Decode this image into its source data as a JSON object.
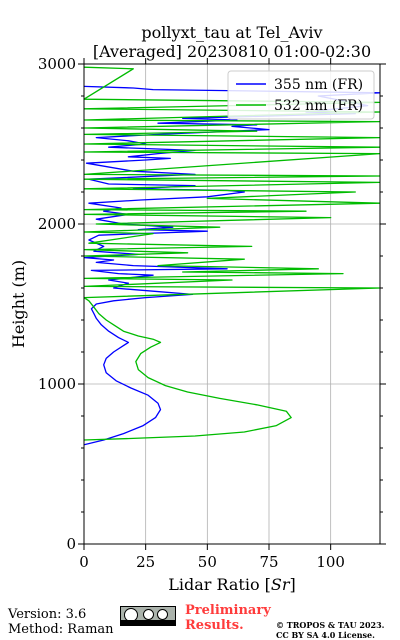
{
  "chart_data": {
    "type": "line",
    "title": "pollyxt_tau at Tel_Aviv",
    "subtitle": "[Averaged] 20230810 01:00-02:30",
    "xlabel": "Lidar Ratio [Sr]",
    "ylabel": "Height (m)",
    "xlim": [
      0,
      120
    ],
    "ylim": [
      0,
      3000
    ],
    "xticks": [
      0,
      25,
      50,
      75,
      100
    ],
    "yticks": [
      0,
      1000,
      2000,
      3000
    ],
    "grid": true,
    "legend_position": "top-right",
    "series": [
      {
        "name": "355 nm (FR)",
        "color": "#0000ff",
        "points": [
          [
            0,
            620
          ],
          [
            8,
            650
          ],
          [
            16,
            690
          ],
          [
            24,
            740
          ],
          [
            29,
            790
          ],
          [
            31,
            840
          ],
          [
            30,
            880
          ],
          [
            26,
            930
          ],
          [
            19,
            975
          ],
          [
            13,
            1020
          ],
          [
            9,
            1070
          ],
          [
            8,
            1120
          ],
          [
            9,
            1160
          ],
          [
            12,
            1200
          ],
          [
            16,
            1240
          ],
          [
            18,
            1260
          ],
          [
            14,
            1290
          ],
          [
            10,
            1330
          ],
          [
            7,
            1370
          ],
          [
            5,
            1410
          ],
          [
            4,
            1440
          ],
          [
            3,
            1470
          ],
          [
            5,
            1500
          ],
          [
            12,
            1520
          ],
          [
            25,
            1540
          ],
          [
            44,
            1560
          ],
          [
            28,
            1580
          ],
          [
            12,
            1600
          ],
          [
            18,
            1630
          ],
          [
            10,
            1650
          ],
          [
            28,
            1680
          ],
          [
            14,
            1690
          ],
          [
            3,
            1710
          ],
          [
            58,
            1720
          ],
          [
            20,
            1740
          ],
          [
            5,
            1760
          ],
          [
            12,
            1775
          ],
          [
            0,
            1790
          ],
          [
            22,
            1810
          ],
          [
            4,
            1830
          ],
          [
            8,
            1860
          ],
          [
            2,
            1900
          ],
          [
            6,
            1930
          ],
          [
            50,
            1955
          ],
          [
            22,
            1965
          ],
          [
            36,
            1980
          ],
          [
            16,
            2000
          ],
          [
            5,
            2030
          ],
          [
            18,
            2060
          ],
          [
            8,
            2080
          ],
          [
            15,
            2100
          ],
          [
            2,
            2130
          ],
          [
            23,
            2150
          ],
          [
            50,
            2170
          ],
          [
            65,
            2200
          ],
          [
            58,
            2210
          ],
          [
            20,
            2220
          ],
          [
            45,
            2240
          ],
          [
            10,
            2250
          ],
          [
            2,
            2280
          ],
          [
            30,
            2300
          ],
          [
            45,
            2310
          ],
          [
            20,
            2330
          ],
          [
            1,
            2380
          ],
          [
            25,
            2400
          ],
          [
            35,
            2410
          ],
          [
            18,
            2420
          ],
          [
            30,
            2440
          ],
          [
            45,
            2460
          ],
          [
            10,
            2480
          ],
          [
            25,
            2500
          ],
          [
            18,
            2520
          ],
          [
            5,
            2540
          ],
          [
            30,
            2560
          ],
          [
            75,
            2590
          ],
          [
            60,
            2610
          ],
          [
            70,
            2620
          ],
          [
            30,
            2630
          ],
          [
            62,
            2650
          ],
          [
            40,
            2660
          ],
          [
            110,
            2690
          ],
          [
            90,
            2700
          ],
          [
            115,
            2740
          ],
          [
            95,
            2800
          ],
          [
            120,
            2820
          ],
          [
            28,
            2840
          ],
          [
            20,
            2850
          ],
          [
            0,
            2860
          ]
        ]
      },
      {
        "name": "532 nm (FR)",
        "color": "#00bb00",
        "points": [
          [
            0,
            650
          ],
          [
            20,
            660
          ],
          [
            45,
            675
          ],
          [
            65,
            700
          ],
          [
            78,
            740
          ],
          [
            84,
            790
          ],
          [
            82,
            830
          ],
          [
            70,
            870
          ],
          [
            55,
            910
          ],
          [
            42,
            950
          ],
          [
            33,
            990
          ],
          [
            26,
            1040
          ],
          [
            22,
            1090
          ],
          [
            21,
            1140
          ],
          [
            23,
            1190
          ],
          [
            27,
            1230
          ],
          [
            31,
            1260
          ],
          [
            28,
            1280
          ],
          [
            22,
            1300
          ],
          [
            16,
            1330
          ],
          [
            12,
            1370
          ],
          [
            9,
            1400
          ],
          [
            6,
            1440
          ],
          [
            4,
            1480
          ],
          [
            2,
            1520
          ],
          [
            0,
            1540
          ],
          [
            120,
            1600
          ],
          [
            0,
            1610
          ],
          [
            60,
            1650
          ],
          [
            0,
            1660
          ],
          [
            105,
            1690
          ],
          [
            40,
            1700
          ],
          [
            95,
            1720
          ],
          [
            30,
            1740
          ],
          [
            65,
            1780
          ],
          [
            0,
            1800
          ],
          [
            42,
            1820
          ],
          [
            0,
            1840
          ],
          [
            68,
            1860
          ],
          [
            2,
            1880
          ],
          [
            28,
            1940
          ],
          [
            0,
            1950
          ],
          [
            55,
            1980
          ],
          [
            5,
            2000
          ],
          [
            100,
            2040
          ],
          [
            0,
            2060
          ],
          [
            90,
            2080
          ],
          [
            0,
            2090
          ],
          [
            120,
            2130
          ],
          [
            50,
            2160
          ],
          [
            110,
            2200
          ],
          [
            0,
            2220
          ],
          [
            120,
            2260
          ],
          [
            0,
            2280
          ],
          [
            120,
            2300
          ],
          [
            0,
            2310
          ],
          [
            120,
            2440
          ],
          [
            0,
            2450
          ],
          [
            120,
            2480
          ],
          [
            0,
            2500
          ],
          [
            120,
            2540
          ],
          [
            0,
            2560
          ],
          [
            70,
            2580
          ],
          [
            0,
            2600
          ],
          [
            120,
            2640
          ],
          [
            0,
            2650
          ],
          [
            120,
            2700
          ],
          [
            0,
            2720
          ],
          [
            120,
            2760
          ],
          [
            0,
            2780
          ],
          [
            20,
            2970
          ],
          [
            0,
            2980
          ]
        ]
      }
    ]
  },
  "footer": {
    "version": "Version: 3.6",
    "method": "Method: Raman",
    "preliminary_line1": "Preliminary",
    "preliminary_line2": "Results.",
    "copyright_line1": "© TROPOS & TAU 2023.",
    "copyright_line2": "CC BY SA 4.0 License.",
    "license_badge": "cc by sa"
  }
}
